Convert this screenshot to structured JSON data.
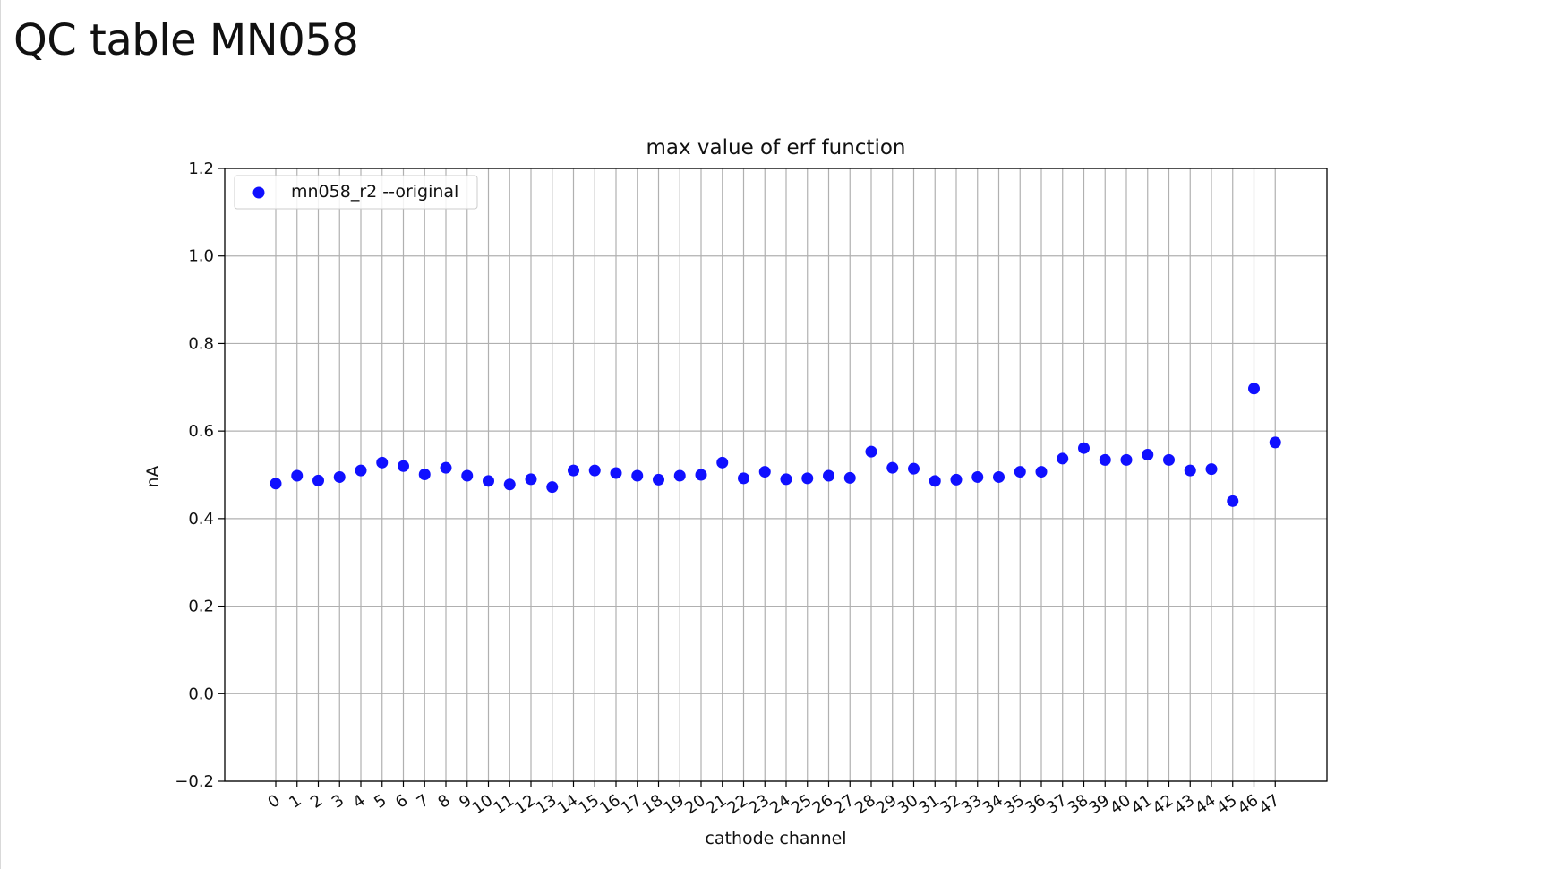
{
  "slide": {
    "title": "QC table MN058"
  },
  "chart_data": {
    "type": "scatter",
    "title": "max value of erf function",
    "xlabel": "cathode channel",
    "ylabel": "nA",
    "ylim": [
      -0.2,
      1.2
    ],
    "yticks": [
      "−0.2",
      "0.0",
      "0.2",
      "0.4",
      "0.6",
      "0.8",
      "1.0",
      "1.2"
    ],
    "xticks": [
      "0",
      "1",
      "2",
      "3",
      "4",
      "5",
      "6",
      "7",
      "8",
      "9",
      "10",
      "11",
      "12",
      "13",
      "14",
      "15",
      "16",
      "17",
      "18",
      "19",
      "20",
      "21",
      "22",
      "23",
      "24",
      "25",
      "26",
      "27",
      "28",
      "29",
      "30",
      "31",
      "32",
      "33",
      "34",
      "35",
      "36",
      "37",
      "38",
      "39",
      "40",
      "41",
      "42",
      "43",
      "44",
      "45",
      "46",
      "47"
    ],
    "grid": true,
    "legend": "top-left",
    "series": [
      {
        "name": "mn058_r2 --original",
        "color": "#1010ff",
        "x": [
          0,
          1,
          2,
          3,
          4,
          5,
          6,
          7,
          8,
          9,
          10,
          11,
          12,
          13,
          14,
          15,
          16,
          17,
          18,
          19,
          20,
          21,
          22,
          23,
          24,
          25,
          26,
          27,
          28,
          29,
          30,
          31,
          32,
          33,
          34,
          35,
          36,
          37,
          38,
          39,
          40,
          41,
          42,
          43,
          44,
          45,
          46,
          47
        ],
        "y": [
          0.48,
          0.498,
          0.487,
          0.495,
          0.51,
          0.528,
          0.52,
          0.501,
          0.516,
          0.498,
          0.486,
          0.478,
          0.49,
          0.472,
          0.51,
          0.51,
          0.504,
          0.498,
          0.489,
          0.498,
          0.5,
          0.528,
          0.492,
          0.507,
          0.49,
          0.492,
          0.498,
          0.493,
          0.553,
          0.516,
          0.514,
          0.486,
          0.489,
          0.495,
          0.495,
          0.507,
          0.507,
          0.537,
          0.561,
          0.534,
          0.534,
          0.546,
          0.534,
          0.51,
          0.513,
          0.44,
          0.697,
          0.574
        ]
      }
    ]
  }
}
